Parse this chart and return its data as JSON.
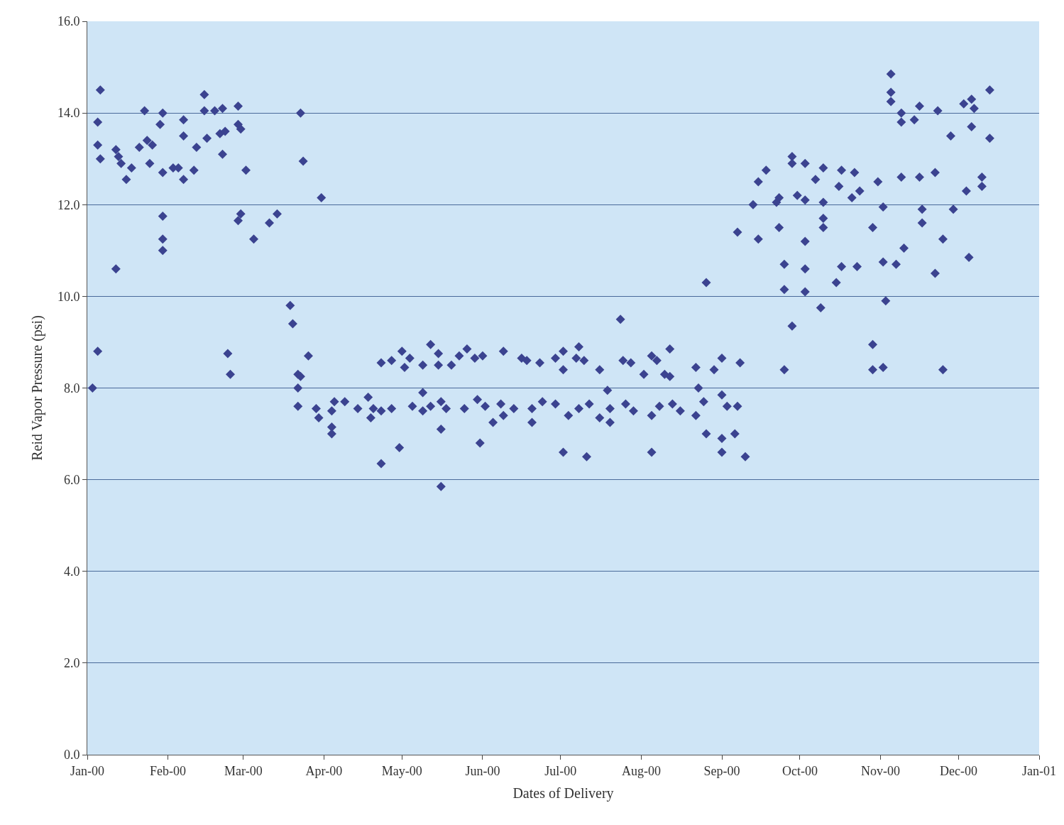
{
  "chart_data": {
    "type": "scatter",
    "xlabel": "Dates of Delivery",
    "ylabel": "Reid Vapor Pressure (psi)",
    "xlim": [
      "2000-01-01",
      "2001-01-01"
    ],
    "xticks": [
      {
        "value": "2000-01-01",
        "label": "Jan-00"
      },
      {
        "value": "2000-02-01",
        "label": "Feb-00"
      },
      {
        "value": "2000-03-01",
        "label": "Mar-00"
      },
      {
        "value": "2000-04-01",
        "label": "Apr-00"
      },
      {
        "value": "2000-05-01",
        "label": "May-00"
      },
      {
        "value": "2000-06-01",
        "label": "Jun-00"
      },
      {
        "value": "2000-07-01",
        "label": "Jul-00"
      },
      {
        "value": "2000-08-01",
        "label": "Aug-00"
      },
      {
        "value": "2000-09-01",
        "label": "Sep-00"
      },
      {
        "value": "2000-10-01",
        "label": "Oct-00"
      },
      {
        "value": "2000-11-01",
        "label": "Nov-00"
      },
      {
        "value": "2000-12-01",
        "label": "Dec-00"
      },
      {
        "value": "2001-01-01",
        "label": "Jan-01"
      }
    ],
    "ylim": [
      0,
      16
    ],
    "yticks": [
      {
        "value": 0,
        "label": "0.0"
      },
      {
        "value": 2,
        "label": "2.0"
      },
      {
        "value": 4,
        "label": "4.0"
      },
      {
        "value": 6,
        "label": "6.0"
      },
      {
        "value": 8,
        "label": "8.0"
      },
      {
        "value": 10,
        "label": "10.0"
      },
      {
        "value": 12,
        "label": "12.0"
      },
      {
        "value": 14,
        "label": "14.0"
      },
      {
        "value": 16,
        "label": "16.0"
      }
    ],
    "grid": "y",
    "marker": "diamond",
    "series": [
      {
        "color": "#3b4390",
        "x": [
          "2000-01-03",
          "2000-01-05",
          "2000-01-05",
          "2000-01-06",
          "2000-01-06",
          "2000-01-05",
          "2000-01-12",
          "2000-01-12",
          "2000-01-13",
          "2000-01-14",
          "2000-01-16",
          "2000-01-18",
          "2000-01-21",
          "2000-01-23",
          "2000-01-24",
          "2000-01-25",
          "2000-01-26",
          "2000-01-29",
          "2000-01-30",
          "2000-01-30",
          "2000-01-30",
          "2000-01-30",
          "2000-01-30",
          "2000-02-03",
          "2000-02-05",
          "2000-02-07",
          "2000-02-07",
          "2000-02-07",
          "2000-02-11",
          "2000-02-12",
          "2000-02-15",
          "2000-02-15",
          "2000-02-16",
          "2000-02-19",
          "2000-02-22",
          "2000-02-21",
          "2000-02-22",
          "2000-02-23",
          "2000-02-24",
          "2000-02-25",
          "2000-02-28",
          "2000-02-28",
          "2000-02-29",
          "2000-02-28",
          "2000-02-29",
          "2000-03-02",
          "2000-03-05",
          "2000-03-11",
          "2000-03-14",
          "2000-03-19",
          "2000-03-20",
          "2000-03-22",
          "2000-03-23",
          "2000-03-24",
          "2000-03-22",
          "2000-03-23",
          "2000-03-26",
          "2000-03-22",
          "2000-03-31",
          "2000-03-29",
          "2000-03-30",
          "2000-04-04",
          "2000-04-04",
          "2000-04-04",
          "2000-04-05",
          "2000-04-09",
          "2000-04-14",
          "2000-04-18",
          "2000-04-19",
          "2000-04-20",
          "2000-04-23",
          "2000-04-23",
          "2000-04-23",
          "2000-04-27",
          "2000-04-27",
          "2000-04-30",
          "2000-05-01",
          "2000-05-02",
          "2000-05-04",
          "2000-05-05",
          "2000-05-09",
          "2000-05-09",
          "2000-05-09",
          "2000-05-12",
          "2000-05-12",
          "2000-05-15",
          "2000-05-15",
          "2000-05-16",
          "2000-05-16",
          "2000-05-16",
          "2000-05-18",
          "2000-05-20",
          "2000-05-23",
          "2000-05-25",
          "2000-05-26",
          "2000-05-29",
          "2000-05-30",
          "2000-06-01",
          "2000-05-31",
          "2000-06-02",
          "2000-06-05",
          "2000-06-08",
          "2000-06-09",
          "2000-06-09",
          "2000-06-13",
          "2000-06-16",
          "2000-06-18",
          "2000-06-20",
          "2000-06-20",
          "2000-06-23",
          "2000-06-24",
          "2000-06-29",
          "2000-06-29",
          "2000-07-02",
          "2000-07-02",
          "2000-07-02",
          "2000-07-04",
          "2000-07-07",
          "2000-07-08",
          "2000-07-08",
          "2000-07-10",
          "2000-07-11",
          "2000-07-12",
          "2000-07-16",
          "2000-07-16",
          "2000-07-19",
          "2000-07-20",
          "2000-07-20",
          "2000-07-24",
          "2000-07-25",
          "2000-07-26",
          "2000-07-28",
          "2000-07-29",
          "2000-08-02",
          "2000-08-05",
          "2000-08-05",
          "2000-08-05",
          "2000-08-07",
          "2000-08-08",
          "2000-08-10",
          "2000-08-12",
          "2000-08-12",
          "2000-08-13",
          "2000-08-16",
          "2000-08-22",
          "2000-08-22",
          "2000-08-23",
          "2000-08-25",
          "2000-08-26",
          "2000-08-26",
          "2000-08-29",
          "2000-09-01",
          "2000-09-01",
          "2000-09-01",
          "2000-09-01",
          "2000-09-03",
          "2000-09-06",
          "2000-09-07",
          "2000-09-07",
          "2000-09-08",
          "2000-09-10",
          "2000-09-13",
          "2000-09-15",
          "2000-09-15",
          "2000-09-18",
          "2000-09-22",
          "2000-09-23",
          "2000-09-23",
          "2000-09-25",
          "2000-09-25",
          "2000-09-25",
          "2000-09-28",
          "2000-09-28",
          "2000-09-28",
          "2000-09-30",
          "2000-10-03",
          "2000-10-03",
          "2000-10-03",
          "2000-10-03",
          "2000-10-03",
          "2000-10-07",
          "2000-10-09",
          "2000-10-10",
          "2000-10-10",
          "2000-10-10",
          "2000-10-10",
          "2000-10-15",
          "2000-10-16",
          "2000-10-17",
          "2000-10-17",
          "2000-10-21",
          "2000-10-22",
          "2000-10-23",
          "2000-10-24",
          "2000-10-29",
          "2000-10-29",
          "2000-10-29",
          "2000-10-31",
          "2000-11-02",
          "2000-11-02",
          "2000-11-02",
          "2000-11-03",
          "2000-11-05",
          "2000-11-05",
          "2000-11-05",
          "2000-11-07",
          "2000-11-09",
          "2000-11-09",
          "2000-11-09",
          "2000-11-10",
          "2000-11-14",
          "2000-11-16",
          "2000-11-16",
          "2000-11-17",
          "2000-11-17",
          "2000-11-22",
          "2000-11-22",
          "2000-11-23",
          "2000-11-25",
          "2000-11-25",
          "2000-11-28",
          "2000-11-29",
          "2000-12-03",
          "2000-12-04",
          "2000-12-05",
          "2000-12-06",
          "2000-12-06",
          "2000-12-07",
          "2000-12-10",
          "2000-12-10",
          "2000-12-13",
          "2000-12-13"
        ],
        "values": [
          8.0,
          13.8,
          13.3,
          14.5,
          13.0,
          8.8,
          10.6,
          13.2,
          13.05,
          12.9,
          12.55,
          12.8,
          13.25,
          14.05,
          13.4,
          12.9,
          13.3,
          13.75,
          14.0,
          12.7,
          11.75,
          11.25,
          11.0,
          12.8,
          12.8,
          13.85,
          12.55,
          13.5,
          12.75,
          13.25,
          14.4,
          14.05,
          13.45,
          14.05,
          14.1,
          13.55,
          13.1,
          13.6,
          8.75,
          8.3,
          14.15,
          11.65,
          11.8,
          13.75,
          13.65,
          12.75,
          11.25,
          11.6,
          11.8,
          9.8,
          9.4,
          8.3,
          14.0,
          12.95,
          8.0,
          8.25,
          8.7,
          7.6,
          12.15,
          7.55,
          7.35,
          7.15,
          7.0,
          7.5,
          7.7,
          7.7,
          7.55,
          7.8,
          7.35,
          7.55,
          7.5,
          6.35,
          8.55,
          8.6,
          7.55,
          6.7,
          8.8,
          8.45,
          8.65,
          7.6,
          7.9,
          8.5,
          7.5,
          8.95,
          7.6,
          8.75,
          8.5,
          7.1,
          5.85,
          7.7,
          7.55,
          8.5,
          8.7,
          7.55,
          8.85,
          8.65,
          7.75,
          8.7,
          6.8,
          7.6,
          7.25,
          7.65,
          8.8,
          7.4,
          7.55,
          8.65,
          8.6,
          7.55,
          7.25,
          8.55,
          7.7,
          8.65,
          7.65,
          8.8,
          8.4,
          6.6,
          7.4,
          8.65,
          8.9,
          7.55,
          8.6,
          6.5,
          7.65,
          8.4,
          7.35,
          7.95,
          7.25,
          7.55,
          9.5,
          8.6,
          7.65,
          8.55,
          7.5,
          8.3,
          7.4,
          6.6,
          8.7,
          8.6,
          7.6,
          8.3,
          8.85,
          8.25,
          7.65,
          7.5,
          8.45,
          7.4,
          8.0,
          7.7,
          10.3,
          7.0,
          8.4,
          6.6,
          6.9,
          8.65,
          7.85,
          7.6,
          7.0,
          7.6,
          11.4,
          8.55,
          6.5,
          12.0,
          11.25,
          12.5,
          12.75,
          12.05,
          12.15,
          11.5,
          10.15,
          10.7,
          8.4,
          9.35,
          13.05,
          12.9,
          12.2,
          10.6,
          10.1,
          11.2,
          12.9,
          12.1,
          12.55,
          9.75,
          12.8,
          12.05,
          11.5,
          11.7,
          10.3,
          12.4,
          10.65,
          12.75,
          12.15,
          12.7,
          10.65,
          12.3,
          8.95,
          8.4,
          11.5,
          12.5,
          8.45,
          10.75,
          11.95,
          9.9,
          14.85,
          14.45,
          14.25,
          10.7,
          12.6,
          13.8,
          14.0,
          11.05,
          13.85,
          14.15,
          12.6,
          11.9,
          11.6,
          12.7,
          10.5,
          14.05,
          8.4,
          11.25,
          13.5,
          11.9,
          14.2,
          12.3,
          10.85,
          14.3,
          13.7,
          14.1,
          12.6,
          12.4,
          14.5,
          13.45
        ]
      }
    ]
  }
}
